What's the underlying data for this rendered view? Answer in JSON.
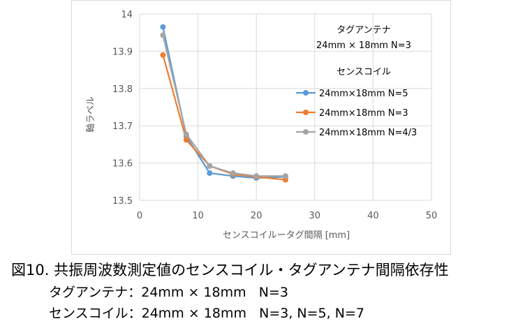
{
  "chart_data": {
    "type": "line",
    "xlabel": "センスコイルータグ間隔 [mm]",
    "ylabel": "軸ラベル",
    "xlim": [
      0,
      50
    ],
    "ylim": [
      13.5,
      14
    ],
    "x_ticks": [
      "0",
      "10",
      "20",
      "30",
      "40",
      "50"
    ],
    "y_ticks": [
      "13.5",
      "13.6",
      "13.7",
      "13.8",
      "13.9",
      "14"
    ],
    "grid": true,
    "legend_position": "top-right",
    "legend_title_1": "タグアンテナ",
    "legend_title_2": "24mm × 18mm  N=3",
    "legend_title_3": "センスコイル",
    "series": [
      {
        "name": "24mm×18mm N=5",
        "color": "#5b9bd5",
        "x": [
          4,
          8,
          12,
          16,
          20,
          25
        ],
        "y": [
          13.965,
          13.672,
          13.573,
          13.565,
          13.56,
          13.563
        ]
      },
      {
        "name": "24mm×18mm N=3",
        "color": "#ed7d31",
        "x": [
          4,
          8,
          12,
          16,
          20,
          25
        ],
        "y": [
          13.89,
          13.662,
          13.592,
          13.57,
          13.563,
          13.555
        ]
      },
      {
        "name": "24mm×18mm N=4/3",
        "color": "#a5a5a5",
        "x": [
          4,
          8,
          12,
          16,
          20,
          25
        ],
        "y": [
          13.943,
          13.677,
          13.592,
          13.573,
          13.565,
          13.565
        ]
      }
    ]
  },
  "caption": {
    "title": "図10. 共振周波数測定値のセンスコイル・タグアンテナ間隔依存性",
    "line1": "タグアンテナ：24mm × 18mm   N=3",
    "line2": "センスコイル：24mm × 18mm   N=3, N=5, N=7"
  }
}
